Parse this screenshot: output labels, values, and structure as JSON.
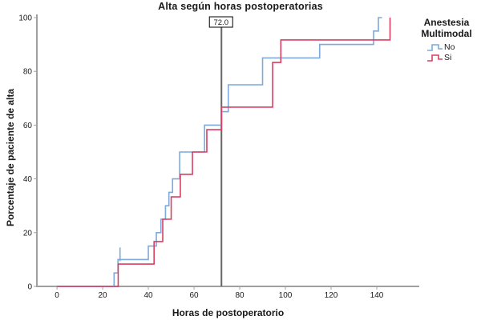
{
  "title": "Alta según horas postoperatorias",
  "axes": {
    "xlabel": "Horas de postoperatorio",
    "ylabel": "Porcentaje de paciente de alta"
  },
  "legend": {
    "title_line1": "Anestesia",
    "title_line2": "Multimodal",
    "items": [
      {
        "label": "No",
        "color": "#7da9dc"
      },
      {
        "label": "Si",
        "color": "#d93f63"
      }
    ]
  },
  "ref_line": {
    "x": 72,
    "label": "72.0",
    "color": "#666666"
  },
  "colors": {
    "axis": "#a0a0a0",
    "text": "#1a1a1a",
    "series_no": "#7da9dc",
    "series_si": "#d93f63"
  },
  "chart_data": {
    "type": "line",
    "subtype": "step-cumulative",
    "title": "Alta según horas postoperatorias",
    "xlabel": "Horas de postoperatorio",
    "ylabel": "Porcentaje de paciente de alta",
    "xlim": [
      -8.8,
      158.6
    ],
    "ylim": [
      0,
      100
    ],
    "xticks": [
      0,
      20,
      40,
      60,
      80,
      100,
      120,
      140
    ],
    "yticks": [
      0,
      20,
      40,
      60,
      80,
      100
    ],
    "grid": false,
    "legend_position": "right",
    "reference_line_x": 72,
    "reference_line_label": "72.0",
    "series": [
      {
        "name": "No",
        "color": "#7da9dc",
        "start": [
          0,
          0
        ],
        "steps": [
          [
            25,
            5
          ],
          [
            26.7,
            10
          ],
          [
            40,
            15
          ],
          [
            43.5,
            20
          ],
          [
            45.5,
            25
          ],
          [
            47.5,
            30
          ],
          [
            49,
            35
          ],
          [
            50.6,
            40
          ],
          [
            53.7,
            50
          ],
          [
            64.6,
            60
          ],
          [
            72,
            65
          ],
          [
            75,
            75
          ],
          [
            90,
            85
          ],
          [
            115,
            90
          ],
          [
            138.6,
            95
          ],
          [
            140.7,
            100
          ]
        ],
        "end_x": 142.3,
        "censored": [
          [
            27.6,
            10
          ]
        ]
      },
      {
        "name": "Si",
        "color": "#d93f63",
        "start": [
          0,
          0
        ],
        "steps": [
          [
            26.8,
            8.3
          ],
          [
            42.5,
            16.7
          ],
          [
            46.3,
            25
          ],
          [
            50,
            33.3
          ],
          [
            54,
            41.7
          ],
          [
            59.3,
            50
          ],
          [
            65.6,
            58.3
          ],
          [
            72,
            66.7
          ],
          [
            94.4,
            83.3
          ],
          [
            98,
            91.7
          ],
          [
            145.8,
            100
          ]
        ],
        "end_x": 145.8,
        "censored": []
      }
    ]
  }
}
